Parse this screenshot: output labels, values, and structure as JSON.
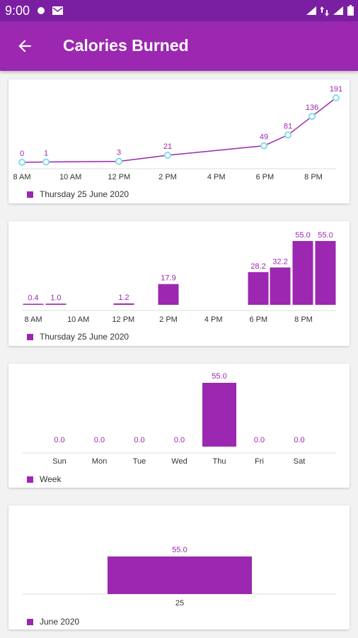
{
  "status_bar": {
    "time": "9:00",
    "icons": [
      "notification-icon",
      "gmail-icon",
      "signal-icon",
      "data-icon",
      "signal-2-icon",
      "battery-icon"
    ]
  },
  "app_bar": {
    "title": "Calories Burned",
    "back_icon": "arrow-back-icon"
  },
  "colors": {
    "primary": "#9c27b0",
    "primary_dark": "#7b1fa2",
    "point": "#80deea"
  },
  "chart_data": [
    {
      "type": "line",
      "x": [
        "8 AM",
        "9 AM",
        "12 PM",
        "2 PM",
        "7 PM",
        "7:30 PM",
        "8:30 PM",
        "9 PM"
      ],
      "series": [
        {
          "values": [
            0,
            1,
            3,
            21,
            49,
            81,
            136,
            191
          ]
        }
      ],
      "value_labels": [
        "0",
        "1",
        "3",
        "21",
        "49",
        "81",
        "136",
        "191"
      ],
      "x_ticks": [
        "8 AM",
        "10 AM",
        "12 PM",
        "2 PM",
        "4 PM",
        "6 PM",
        "8 PM"
      ],
      "legend": "Thursday 25 June 2020",
      "ylim": [
        0,
        191
      ]
    },
    {
      "type": "bar",
      "categories": [
        "8 AM",
        "9 AM",
        "12 PM",
        "2 PM",
        "6 PM",
        "7 PM",
        "8 PM",
        "9 PM"
      ],
      "values": [
        0.4,
        1.0,
        1.2,
        17.9,
        28.2,
        32.2,
        55.0,
        55.0
      ],
      "value_labels": [
        "0.4",
        "1.0",
        "1.2",
        "17.9",
        "28.2",
        "32.2",
        "55.0",
        "55.0"
      ],
      "x_ticks": [
        "8 AM",
        "10 AM",
        "12 PM",
        "2 PM",
        "4 PM",
        "6 PM",
        "8 PM"
      ],
      "legend": "Thursday 25 June 2020",
      "ylim": [
        0,
        55
      ]
    },
    {
      "type": "bar",
      "categories": [
        "Sun",
        "Mon",
        "Tue",
        "Wed",
        "Thu",
        "Fri",
        "Sat"
      ],
      "values": [
        0.0,
        0.0,
        0.0,
        0.0,
        55.0,
        0.0,
        0.0
      ],
      "value_labels": [
        "0.0",
        "0.0",
        "0.0",
        "0.0",
        "55.0",
        "0.0",
        "0.0"
      ],
      "legend": "Week",
      "ylim": [
        0,
        55
      ]
    },
    {
      "type": "bar",
      "categories": [
        "25"
      ],
      "values": [
        55.0
      ],
      "value_labels": [
        "55.0"
      ],
      "legend": "June 2020",
      "ylim": [
        0,
        55
      ]
    }
  ]
}
